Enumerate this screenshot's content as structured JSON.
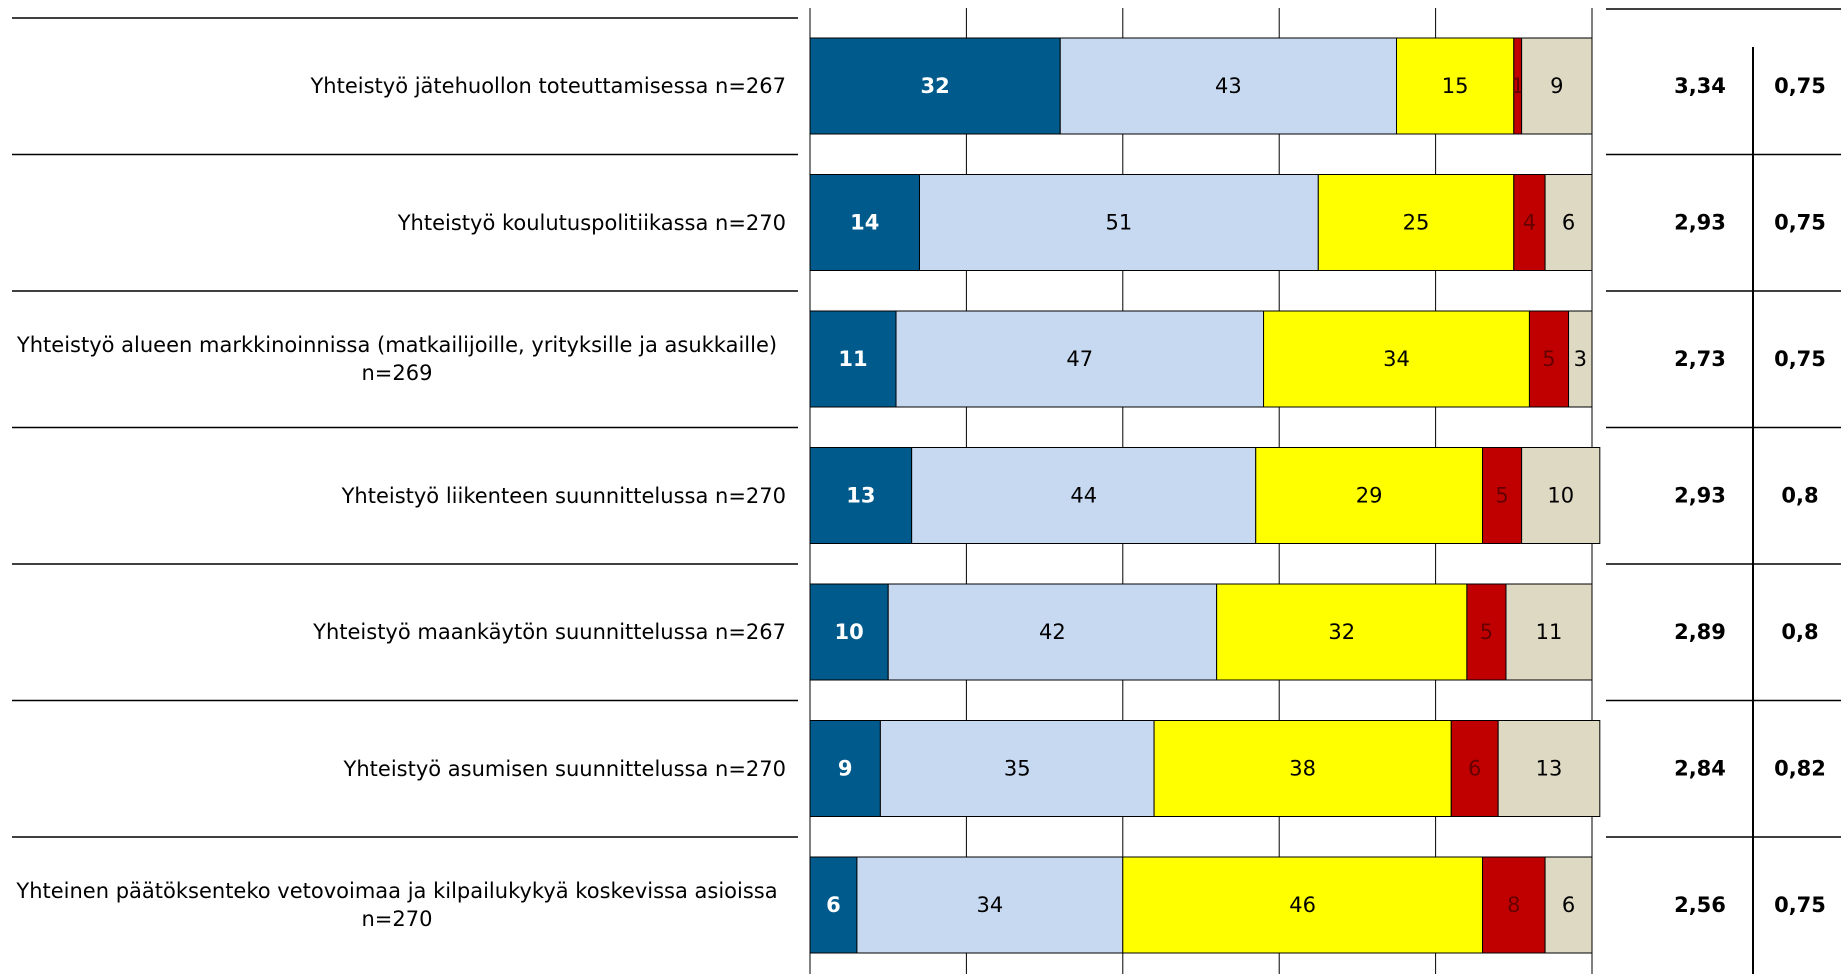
{
  "chart_data": {
    "type": "bar",
    "orientation": "horizontal",
    "stacked": true,
    "categories": [
      "Yhteistyö jätehuollon toteuttamisessa n=267",
      "Yhteistyö koulutuspolitiikassa n=270",
      "Yhteistyö alueen markkinoinnissa (matkailijoille, yrityksille ja asukkaille) n=269",
      "Yhteistyö liikenteen suunnittelussa n=270",
      "Yhteistyö maankäytön suunnittelussa n=267",
      "Yhteistyö asumisen suunnittelussa n=270",
      "Yhteinen päätöksenteko vetovoimaa ja kilpailukykyä koskevissa asioissa n=270"
    ],
    "series": [
      {
        "color": "#005a8c",
        "values": [
          32,
          14,
          11,
          13,
          10,
          9,
          6
        ]
      },
      {
        "color": "#c6d9f1",
        "values": [
          43,
          51,
          47,
          44,
          42,
          35,
          34
        ]
      },
      {
        "color": "#ffff00",
        "values": [
          15,
          25,
          34,
          29,
          32,
          38,
          46
        ]
      },
      {
        "color": "#c00000",
        "values": [
          1,
          4,
          5,
          5,
          5,
          6,
          8
        ]
      },
      {
        "color": "#ddd9c3",
        "values": [
          9,
          6,
          3,
          10,
          11,
          13,
          6
        ]
      }
    ],
    "xlim": [
      0,
      100
    ],
    "xticks": [
      0,
      20,
      40,
      60,
      80,
      100
    ],
    "grid": true
  },
  "table": {
    "rows": [
      [
        "3,34",
        "0,75"
      ],
      [
        "2,93",
        "0,75"
      ],
      [
        "2,73",
        "0,75"
      ],
      [
        "2,93",
        "0,8"
      ],
      [
        "2,89",
        "0,8"
      ],
      [
        "2,84",
        "0,82"
      ],
      [
        "2,56",
        "0,75"
      ]
    ]
  }
}
